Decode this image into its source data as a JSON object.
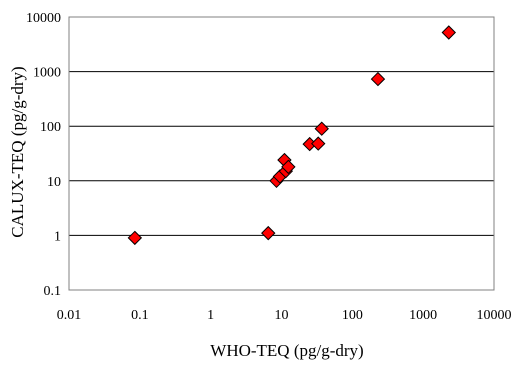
{
  "chart_data": {
    "type": "scatter",
    "title": "",
    "xlabel": "WHO-TEQ (pg/g-dry)",
    "ylabel": "CALUX-TEQ (pg/g-dry)",
    "xscale": "log",
    "yscale": "log",
    "xlim": [
      0.01,
      10000
    ],
    "ylim": [
      0.1,
      10000
    ],
    "x_ticks": [
      "0.01",
      "0.1",
      "1",
      "10",
      "100",
      "1000",
      "10000"
    ],
    "y_ticks": [
      "0.1",
      "1",
      "10",
      "100",
      "1000",
      "10000"
    ],
    "grid": "horizontal",
    "legend": "none",
    "marker": "diamond",
    "marker_color": "#ff0000",
    "marker_edge_color": "#000000",
    "series": [
      {
        "x": [
          0.085,
          6.5,
          8.5,
          9.5,
          11,
          11.5,
          12.5,
          25,
          33,
          37,
          230,
          2300
        ],
        "y": [
          0.9,
          1.1,
          10,
          12,
          24,
          15,
          18,
          47,
          48,
          90,
          730,
          5200
        ]
      }
    ]
  }
}
